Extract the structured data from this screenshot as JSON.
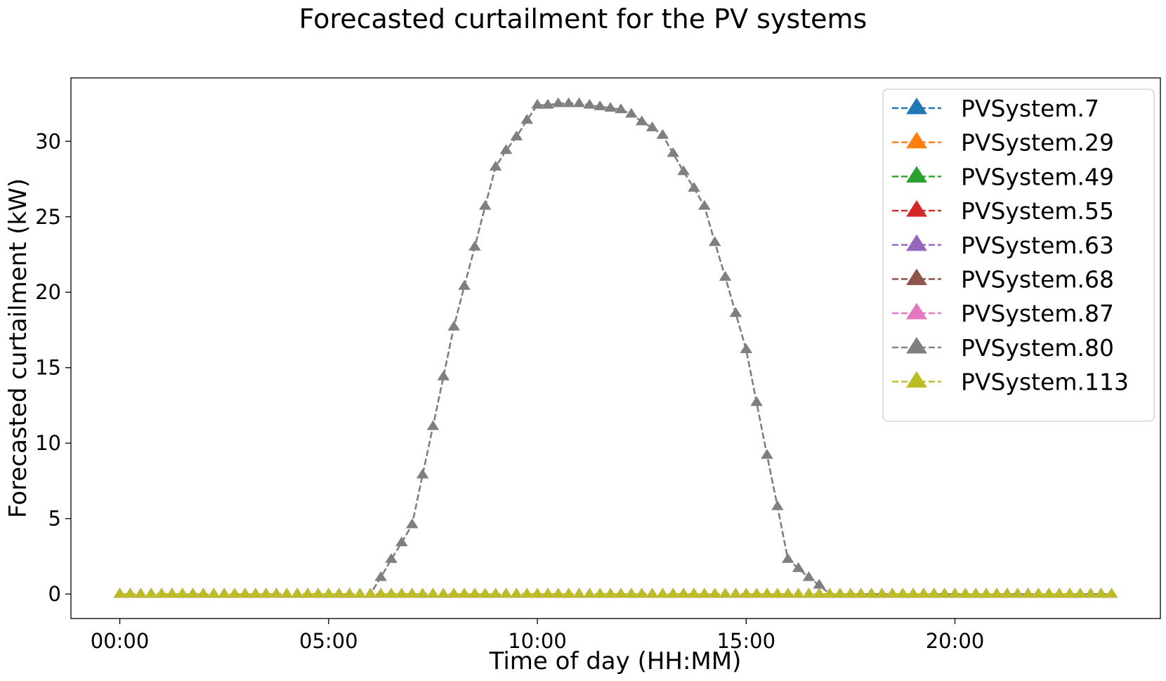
{
  "chart_data": {
    "type": "line",
    "title": "Forecasted curtailment for the PV systems",
    "xlabel": "Time of day (HH:MM)",
    "ylabel": "Forecasted curtailment (kW)",
    "x_unit": "hours",
    "xlim": [
      -1.17,
      24.92
    ],
    "ylim": [
      -1.62,
      34.2
    ],
    "x_ticks": [
      0,
      5,
      10,
      15,
      20
    ],
    "x_tick_labels": [
      "00:00",
      "05:00",
      "10:00",
      "15:00",
      "20:00"
    ],
    "y_ticks": [
      0,
      5,
      10,
      15,
      20,
      25,
      30
    ],
    "y_tick_labels": [
      "0",
      "5",
      "10",
      "15",
      "20",
      "25",
      "30"
    ],
    "grid": false,
    "legend_position": "top-right",
    "line_style": "dashed",
    "marker": "triangle-up",
    "x": [
      "00:00",
      "00:15",
      "00:30",
      "00:45",
      "01:00",
      "01:15",
      "01:30",
      "01:45",
      "02:00",
      "02:15",
      "02:30",
      "02:45",
      "03:00",
      "03:15",
      "03:30",
      "03:45",
      "04:00",
      "04:15",
      "04:30",
      "04:45",
      "05:00",
      "05:15",
      "05:30",
      "05:45",
      "06:00",
      "06:15",
      "06:30",
      "06:45",
      "07:00",
      "07:15",
      "07:30",
      "07:45",
      "08:00",
      "08:15",
      "08:30",
      "08:45",
      "09:00",
      "09:15",
      "09:30",
      "09:45",
      "10:00",
      "10:15",
      "10:30",
      "10:45",
      "11:00",
      "11:15",
      "11:30",
      "11:45",
      "12:00",
      "12:15",
      "12:30",
      "12:45",
      "13:00",
      "13:15",
      "13:30",
      "13:45",
      "14:00",
      "14:15",
      "14:30",
      "14:45",
      "15:00",
      "15:15",
      "15:30",
      "15:45",
      "16:00",
      "16:15",
      "16:30",
      "16:45",
      "17:00",
      "17:15",
      "17:30",
      "17:45",
      "18:00",
      "18:15",
      "18:30",
      "18:45",
      "19:00",
      "19:15",
      "19:30",
      "19:45",
      "20:00",
      "20:15",
      "20:30",
      "20:45",
      "21:00",
      "21:15",
      "21:30",
      "21:45",
      "22:00",
      "22:15",
      "22:30",
      "22:45",
      "23:00",
      "23:15",
      "23:30",
      "23:45"
    ],
    "series": [
      {
        "name": "PVSystem.7",
        "color": "#1f77b4",
        "values": "zero"
      },
      {
        "name": "PVSystem.29",
        "color": "#ff7f0e",
        "values": "zero"
      },
      {
        "name": "PVSystem.49",
        "color": "#2ca02c",
        "values": "zero"
      },
      {
        "name": "PVSystem.55",
        "color": "#d62728",
        "values": "zero"
      },
      {
        "name": "PVSystem.63",
        "color": "#9467bd",
        "values": "zero"
      },
      {
        "name": "PVSystem.68",
        "color": "#8c564b",
        "values": "curve"
      },
      {
        "name": "PVSystem.87",
        "color": "#e377c2",
        "values": "zero"
      },
      {
        "name": "PVSystem.80",
        "color": "#7f7f7f",
        "values": "curve"
      },
      {
        "name": "PVSystem.113",
        "color": "#bcbd22",
        "values": "zero"
      }
    ],
    "curve": [
      0,
      0,
      0,
      0,
      0,
      0,
      0,
      0,
      0,
      0,
      0,
      0,
      0,
      0,
      0,
      0,
      0,
      0,
      0,
      0,
      0,
      0,
      0,
      0,
      0,
      1.1,
      2.3,
      3.4,
      4.6,
      7.9,
      11.1,
      14.4,
      17.7,
      20.4,
      23.0,
      25.7,
      28.3,
      29.4,
      30.3,
      31.4,
      32.4,
      32.4,
      32.5,
      32.5,
      32.5,
      32.4,
      32.3,
      32.2,
      32.1,
      31.8,
      31.3,
      30.9,
      30.4,
      29.2,
      28.0,
      26.9,
      25.7,
      23.3,
      21.0,
      18.6,
      16.2,
      12.7,
      9.2,
      5.8,
      2.3,
      1.7,
      1.1,
      0.6,
      0,
      0,
      0,
      0,
      0,
      0,
      0,
      0,
      0,
      0,
      0,
      0,
      0,
      0,
      0,
      0,
      0,
      0,
      0,
      0,
      0,
      0,
      0,
      0,
      0,
      0,
      0,
      0
    ]
  }
}
